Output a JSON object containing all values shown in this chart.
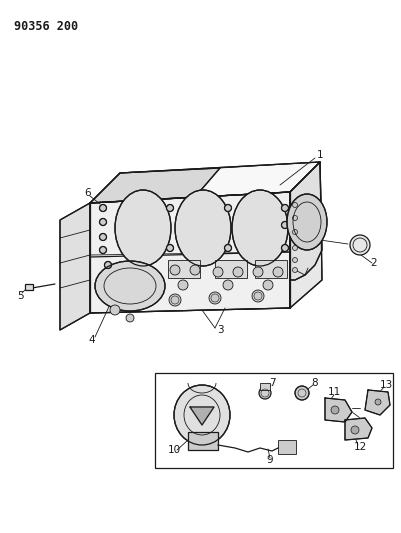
{
  "title_code": "90356 200",
  "bg_color": "#ffffff",
  "line_color": "#1a1a1a",
  "figure_width": 4.01,
  "figure_height": 5.33,
  "dpi": 100
}
